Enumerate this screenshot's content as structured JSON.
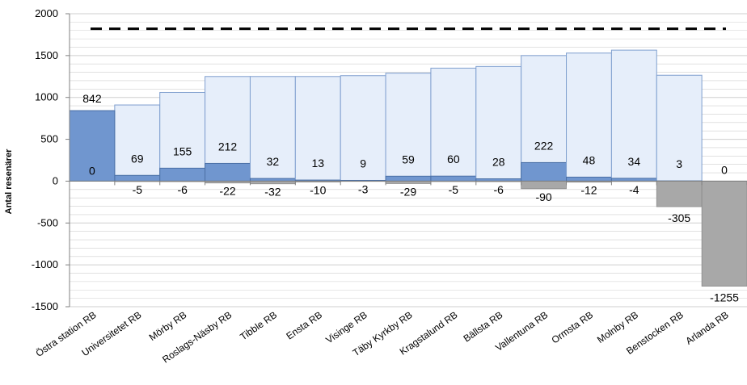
{
  "chart_data": {
    "type": "bar",
    "ylabel": "Antal resenärer",
    "xlabel": "",
    "title": "",
    "ylim": [
      -1500,
      2000
    ],
    "yticks": [
      -1500,
      -1000,
      -500,
      0,
      500,
      1000,
      1500,
      2000
    ],
    "grid": true,
    "reference_line": 1820,
    "categories": [
      "Östra station RB",
      "Universitetet RB",
      "Mörby RB",
      "Roslags-Näsby RB",
      "Tibble RB",
      "Ensta RB",
      "Visinge RB",
      "Täby Kyrkby RB",
      "Kragstalund RB",
      "Bällsta RB",
      "Vallentuna RB",
      "Ormsta RB",
      "Molnby RB",
      "Benstocken RB",
      "Arlanda RB"
    ],
    "series": [
      {
        "values": [
          842,
          910,
          1060,
          1250,
          1250,
          1250,
          1260,
          1290,
          1350,
          1370,
          1500,
          1530,
          1565,
          1265,
          0
        ]
      },
      {
        "values": [
          0,
          69,
          155,
          212,
          32,
          13,
          9,
          59,
          60,
          28,
          222,
          48,
          34,
          3,
          0
        ]
      },
      {
        "values": [
          0,
          -5,
          -6,
          -22,
          -32,
          -10,
          -3,
          -29,
          -5,
          -6,
          -90,
          -12,
          -4,
          -305,
          -1255
        ]
      }
    ],
    "data_labels_top": [
      "842",
      "69",
      "155",
      "212",
      "32",
      "13",
      "9",
      "59",
      "60",
      "28",
      "222",
      "48",
      "34",
      "3",
      "0"
    ],
    "data_labels_bottom": [
      "0",
      "-5",
      "-6",
      "-22",
      "-32",
      "-10",
      "-3",
      "-29",
      "-5",
      "-6",
      "-90",
      "-12",
      "-4",
      "-305",
      "-1255"
    ],
    "colors": {
      "cumulative_fill": "#e6eefa",
      "cumulative_stroke": "#7f9fcf",
      "boarding_fill": "#7096cf",
      "boarding_stroke": "#4a6fa5",
      "alighting_fill": "#a8a8a8",
      "grid": "#cfcfcf",
      "reference_line": "#000000"
    }
  }
}
